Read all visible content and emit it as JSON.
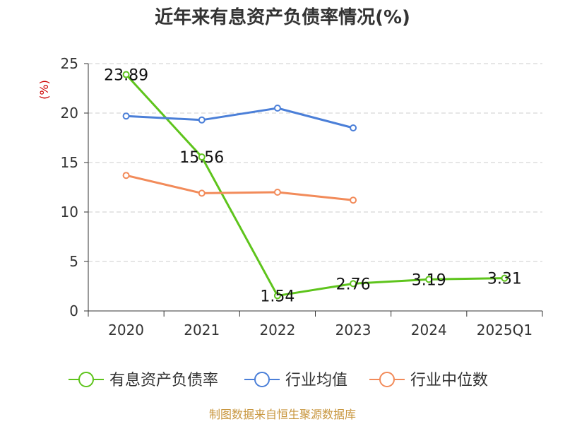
{
  "chart_data": {
    "type": "line",
    "title": "近年来有息资产负债率情况(%)",
    "ylabel": "(%)",
    "xlabel": "",
    "categories": [
      "2020",
      "2021",
      "2022",
      "2023",
      "2024",
      "2025Q1"
    ],
    "ylim": [
      0,
      25
    ],
    "yticks": [
      0,
      5,
      10,
      15,
      20,
      25
    ],
    "grid": true,
    "legend_position": "bottom",
    "series": [
      {
        "name": "有息资产负债率",
        "color": "#5ec41c",
        "values": [
          23.89,
          15.56,
          1.54,
          2.76,
          3.19,
          3.31
        ],
        "labels": [
          "23.89",
          "15.56",
          "1.54",
          "2.76",
          "3.19",
          "3.31"
        ]
      },
      {
        "name": "行业均值",
        "color": "#4b7fd8",
        "values": [
          19.7,
          19.3,
          20.5,
          18.5,
          null,
          null
        ]
      },
      {
        "name": "行业中位数",
        "color": "#f28b5a",
        "values": [
          13.7,
          11.9,
          12.0,
          11.2,
          null,
          null
        ]
      }
    ]
  },
  "source_note": "制图数据来自恒生聚源数据库"
}
